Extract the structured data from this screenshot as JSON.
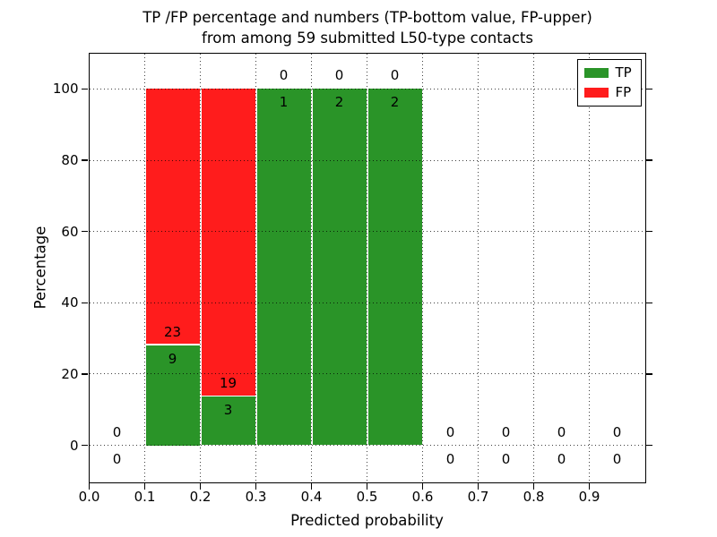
{
  "title": {
    "line1": "TP /FP percentage and numbers (TP-bottom value, FP-upper)",
    "line2": "from among 59 submitted L50-type contacts"
  },
  "axes": {
    "xlabel": "Predicted probability",
    "ylabel": "Percentage",
    "x_ticks": [
      "0.0",
      "0.1",
      "0.2",
      "0.3",
      "0.4",
      "0.5",
      "0.6",
      "0.7",
      "0.8",
      "0.9"
    ],
    "y_ticks": [
      "0",
      "20",
      "40",
      "60",
      "80",
      "100"
    ]
  },
  "legend": {
    "position": "upper right",
    "entries": [
      {
        "label": "TP",
        "color": "#2a9428"
      },
      {
        "label": "FP",
        "color": "#ff1c1c"
      }
    ]
  },
  "chart_data": {
    "type": "bar",
    "stacked": true,
    "normalized_to_percent": true,
    "title": "TP /FP percentage and numbers (TP-bottom value, FP-upper) from among 59 submitted L50-type contacts",
    "xlabel": "Predicted probability",
    "ylabel": "Percentage",
    "xlim": [
      0.0,
      1.0
    ],
    "ylim": [
      -10.3,
      110.05
    ],
    "grid": {
      "enabled": true,
      "style": "dotted",
      "color": "#000000",
      "above_bars": true
    },
    "colors": {
      "tp": "#2a9428",
      "fp": "#ff1c1c",
      "bar_edge": "#ffffff"
    },
    "total_contacts": 59,
    "y_gridline_values": [
      0,
      20,
      40,
      60,
      80,
      100
    ],
    "series": [
      {
        "name": "TP",
        "values_pct": [
          0,
          28.125,
          13.636,
          100,
          100,
          100,
          0,
          0,
          0,
          0
        ]
      },
      {
        "name": "FP",
        "values_pct": [
          0,
          71.875,
          86.364,
          0,
          0,
          0,
          0,
          0,
          0,
          0
        ]
      }
    ],
    "bins": [
      {
        "range": [
          0.0,
          0.1
        ],
        "tp": 0,
        "fp": 0,
        "tp_pct": 0,
        "fp_pct": 0
      },
      {
        "range": [
          0.1,
          0.2
        ],
        "tp": 9,
        "fp": 23,
        "tp_pct": 28.125,
        "fp_pct": 71.875
      },
      {
        "range": [
          0.2,
          0.3
        ],
        "tp": 3,
        "fp": 19,
        "tp_pct": 13.636,
        "fp_pct": 86.364
      },
      {
        "range": [
          0.3,
          0.4
        ],
        "tp": 1,
        "fp": 0,
        "tp_pct": 100,
        "fp_pct": 0
      },
      {
        "range": [
          0.4,
          0.5
        ],
        "tp": 2,
        "fp": 0,
        "tp_pct": 100,
        "fp_pct": 0
      },
      {
        "range": [
          0.5,
          0.6
        ],
        "tp": 2,
        "fp": 0,
        "tp_pct": 100,
        "fp_pct": 0
      },
      {
        "range": [
          0.6,
          0.7
        ],
        "tp": 0,
        "fp": 0,
        "tp_pct": 0,
        "fp_pct": 0
      },
      {
        "range": [
          0.7,
          0.8
        ],
        "tp": 0,
        "fp": 0,
        "tp_pct": 0,
        "fp_pct": 0
      },
      {
        "range": [
          0.8,
          0.9
        ],
        "tp": 0,
        "fp": 0,
        "tp_pct": 0,
        "fp_pct": 0
      },
      {
        "range": [
          0.9,
          1.0
        ],
        "tp": 0,
        "fp": 0,
        "tp_pct": 0,
        "fp_pct": 0
      }
    ]
  }
}
